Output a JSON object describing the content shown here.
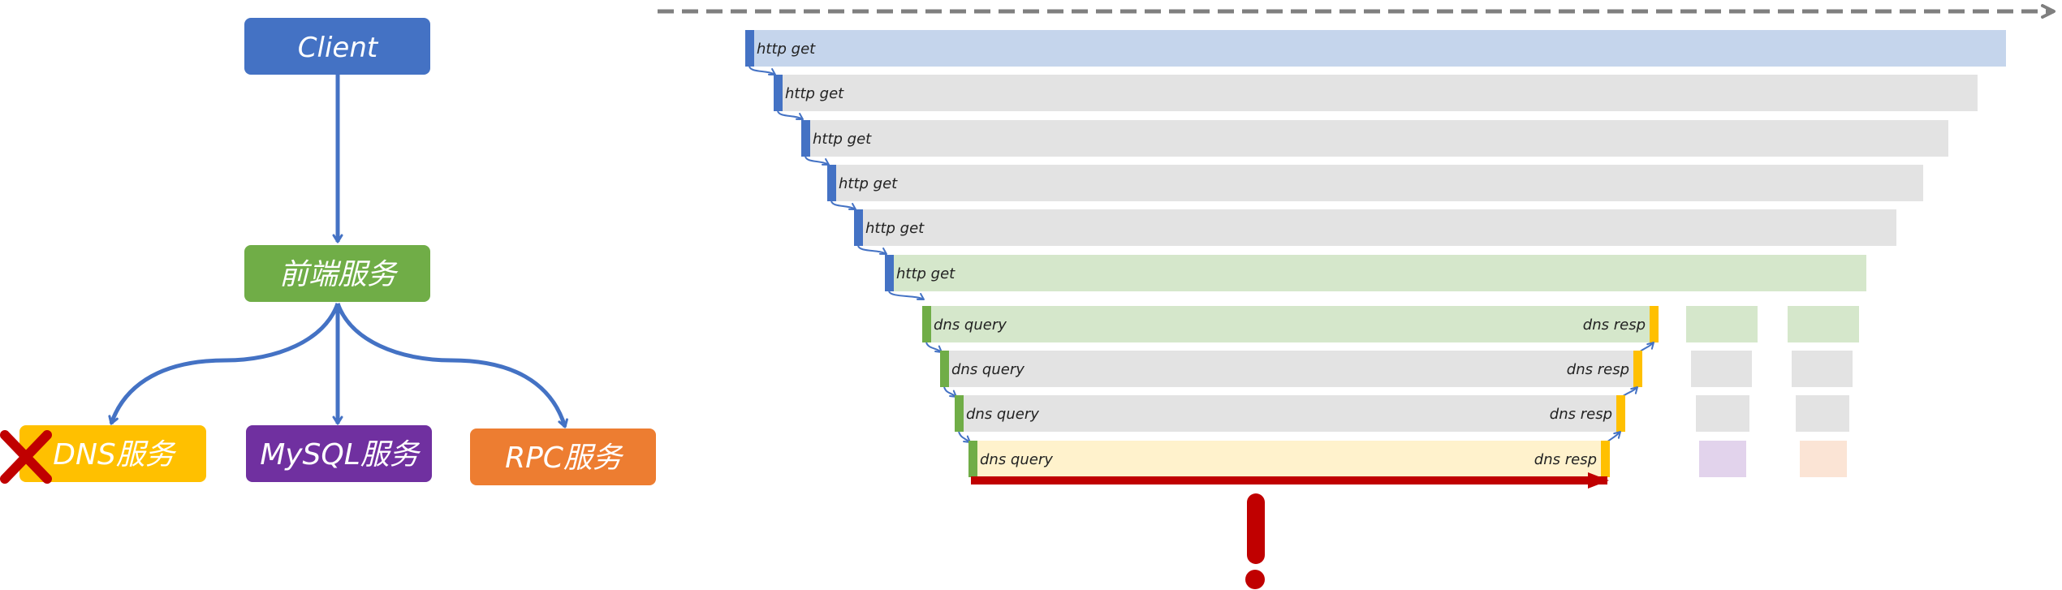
{
  "colors": {
    "client": "#4472C4",
    "frontend": "#70AD47",
    "dns": "#FFC000",
    "mysql": "#7030A0",
    "rpc": "#ED7D31",
    "connector": "#4472C4",
    "alert": "#C00000",
    "timeline": "#7F7F7F",
    "http_start": "#4472C4",
    "dns_start": "#70AD47",
    "dns_end": "#FFC000"
  },
  "topology": {
    "client": {
      "label": "Client",
      "icon": "none"
    },
    "frontend": {
      "label": "前端服务"
    },
    "dns": {
      "label": "DNS服务",
      "status_icon": "failure-x-icon"
    },
    "mysql": {
      "label": "MySQL服务"
    },
    "rpc": {
      "label": "RPC服务"
    }
  },
  "trace": {
    "timeline_icon": "dashed-time-arrow-icon",
    "http_spans": [
      {
        "label": "http get",
        "fill": "#C5D5EC"
      },
      {
        "label": "http get",
        "fill": "#E3E3E3"
      },
      {
        "label": "http get",
        "fill": "#E3E3E3"
      },
      {
        "label": "http get",
        "fill": "#E3E3E3"
      },
      {
        "label": "http get",
        "fill": "#E3E3E3"
      },
      {
        "label": "http get",
        "fill": "#D5E7CB"
      }
    ],
    "dns_spans": [
      {
        "start_label": "dns query",
        "end_label": "dns resp",
        "fill": "#D5E7CB",
        "tail_fill": "#D5E7CB"
      },
      {
        "start_label": "dns query",
        "end_label": "dns resp",
        "fill": "#E3E3E3",
        "tail_fill": "#E3E3E3"
      },
      {
        "start_label": "dns query",
        "end_label": "dns resp",
        "fill": "#E3E3E3",
        "tail_fill": "#E3E3E3"
      },
      {
        "start_label": "dns query",
        "end_label": "dns resp",
        "fill": "#FFF2CC",
        "tail_fills": [
          "#E2D3EC",
          "#FBE4D5"
        ]
      }
    ],
    "alert_icon": "exclamation-icon",
    "slow_arrow_icon": "long-red-arrow-icon"
  }
}
